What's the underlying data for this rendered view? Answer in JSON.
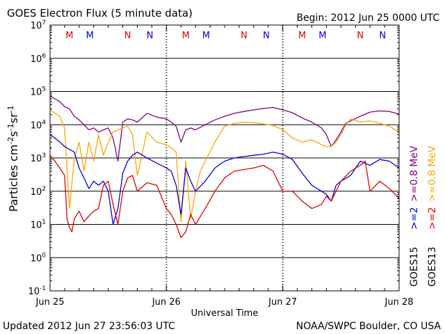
{
  "chart_data": {
    "type": "line",
    "title": "GOES Electron Flux (5 minute data)",
    "begin_label": "Begin: 2012 Jun 25 0000 UTC",
    "xlabel": "Universal Time",
    "ylabel_parts": [
      "Particles cm",
      "-2",
      "s",
      "-1",
      "sr",
      "-1"
    ],
    "y_scale": "log",
    "ylim": [
      0.1,
      10000000
    ],
    "xlim": [
      0,
      72
    ],
    "y_ticks": [
      {
        "base": "10",
        "exp": "7",
        "value": 10000000
      },
      {
        "base": "10",
        "exp": "6",
        "value": 1000000
      },
      {
        "base": "10",
        "exp": "5",
        "value": 100000
      },
      {
        "base": "10",
        "exp": "4",
        "value": 10000
      },
      {
        "base": "10",
        "exp": "3",
        "value": 1000
      },
      {
        "base": "10",
        "exp": "2",
        "value": 100
      },
      {
        "base": "10",
        "exp": "1",
        "value": 10
      },
      {
        "base": "10",
        "exp": "0",
        "value": 1
      },
      {
        "base": "10",
        "exp": "-1",
        "value": 0.1
      }
    ],
    "x_ticks": [
      {
        "label": "Jun 25",
        "hour": 0
      },
      {
        "label": "Jun 26",
        "hour": 24
      },
      {
        "label": "Jun 27",
        "hour": 48
      },
      {
        "label": "Jun 28",
        "hour": 72
      }
    ],
    "grid": "solid horizontal lines at each decade",
    "threshold_dashed_at": 1000,
    "markers": [
      {
        "label": "M",
        "hour": 4,
        "color": "#e00000"
      },
      {
        "label": "M",
        "hour": 8.2,
        "color": "#0000dd"
      },
      {
        "label": "N",
        "hour": 16,
        "color": "#e00000"
      },
      {
        "label": "N",
        "hour": 20.6,
        "color": "#0000dd"
      },
      {
        "label": "M",
        "hour": 28,
        "color": "#e00000"
      },
      {
        "label": "M",
        "hour": 32.2,
        "color": "#0000dd"
      },
      {
        "label": "N",
        "hour": 40,
        "color": "#e00000"
      },
      {
        "label": "N",
        "hour": 44.6,
        "color": "#0000dd"
      },
      {
        "label": "M",
        "hour": 52,
        "color": "#e00000"
      },
      {
        "label": "M",
        "hour": 56.2,
        "color": "#0000dd"
      },
      {
        "label": "N",
        "hour": 64,
        "color": "#e00000"
      },
      {
        "label": "N",
        "hour": 68.6,
        "color": "#0000dd"
      }
    ],
    "legend": {
      "position": "right, vertical",
      "groups": [
        {
          "satellite": "GOES15",
          "entries": [
            {
              "text": ">=2",
              "color": "#0000dd"
            },
            {
              "text": ">=0.8 MeV",
              "color": "#800080"
            }
          ]
        },
        {
          "satellite": "GOES13",
          "entries": [
            {
              "text": ">=2",
              "color": "#e00000"
            },
            {
              "text": ">=0.8 MeV",
              "color": "#ffa500"
            }
          ]
        }
      ]
    },
    "series": [
      {
        "color": "#800080",
        "x": [
          0,
          1,
          2,
          3,
          4,
          5,
          6,
          7,
          8,
          9,
          10,
          11,
          12,
          13,
          14,
          15,
          16,
          17,
          18,
          20,
          22,
          24,
          25,
          26,
          27,
          28,
          29,
          30,
          32,
          34,
          36,
          38,
          40,
          42,
          44,
          46,
          48,
          50,
          52,
          54,
          56,
          57,
          58,
          59,
          60,
          61,
          62,
          64,
          66,
          68,
          70,
          72
        ],
        "y": [
          75000,
          60000,
          50000,
          35000,
          30000,
          18000,
          14000,
          10000,
          7000,
          8000,
          6000,
          7000,
          8000,
          4000,
          800,
          12000,
          15000,
          14000,
          12000,
          22000,
          17000,
          15000,
          12000,
          9000,
          3000,
          7000,
          8000,
          7000,
          10000,
          14000,
          18000,
          22000,
          25000,
          28000,
          31000,
          33000,
          28000,
          23000,
          16000,
          12000,
          8000,
          5000,
          2200,
          3500,
          6000,
          11000,
          13000,
          18000,
          24000,
          26000,
          25000,
          21000
        ]
      },
      {
        "color": "#ffa500",
        "x": [
          0,
          1,
          2,
          3,
          4,
          5,
          6,
          7,
          8,
          9,
          10,
          11,
          12,
          13,
          14,
          15,
          16,
          17,
          18,
          20,
          22,
          24,
          25,
          26,
          27,
          28,
          29,
          30,
          31,
          32,
          34,
          36,
          38,
          40,
          42,
          44,
          46,
          48,
          50,
          52,
          54,
          56,
          57,
          58,
          59,
          60,
          61,
          62,
          64,
          66,
          68,
          70,
          72
        ],
        "y": [
          28000,
          22000,
          18000,
          8000,
          30,
          1000,
          3000,
          400,
          3000,
          800,
          5000,
          1200,
          3000,
          6000,
          7000,
          8000,
          9000,
          5000,
          300,
          6000,
          3000,
          2500,
          2000,
          1500,
          12,
          800,
          15,
          100,
          400,
          800,
          3000,
          9000,
          11000,
          12000,
          11500,
          10500,
          9500,
          7000,
          4000,
          3000,
          3500,
          2500,
          2200,
          2200,
          3000,
          5000,
          10000,
          15000,
          12000,
          13000,
          11000,
          9000,
          6000
        ]
      },
      {
        "color": "#0000dd",
        "x": [
          0,
          1,
          2,
          3,
          4,
          5,
          6,
          7,
          8,
          9,
          10,
          11,
          12,
          13,
          14,
          15,
          16,
          17,
          18,
          20,
          22,
          24,
          25,
          26,
          27,
          28,
          29,
          30,
          32,
          34,
          36,
          38,
          40,
          42,
          44,
          46,
          48,
          50,
          52,
          54,
          56,
          57,
          58,
          59,
          60,
          62,
          64,
          66,
          68,
          70,
          72
        ],
        "y": [
          5000,
          4000,
          3000,
          2200,
          1800,
          1500,
          500,
          250,
          120,
          200,
          150,
          200,
          100,
          10,
          30,
          350,
          800,
          1200,
          1500,
          1000,
          700,
          500,
          400,
          150,
          20,
          500,
          200,
          100,
          200,
          500,
          800,
          1000,
          1100,
          1200,
          1300,
          1500,
          1300,
          900,
          350,
          150,
          100,
          80,
          50,
          150,
          200,
          300,
          800,
          600,
          900,
          800,
          500
        ]
      },
      {
        "color": "#e00000",
        "x": [
          0,
          1,
          2,
          3,
          3.5,
          4,
          4.5,
          5,
          6,
          7,
          8,
          9,
          10,
          11,
          12,
          13,
          14,
          15,
          16,
          17,
          18,
          20,
          22,
          24,
          25,
          26,
          27,
          28,
          29,
          30,
          32,
          34,
          36,
          38,
          40,
          42,
          44,
          46,
          48,
          50,
          52,
          54,
          56,
          57,
          58,
          60,
          62,
          64,
          65,
          66,
          68,
          70,
          72
        ],
        "y": [
          1200,
          800,
          500,
          300,
          15,
          8,
          6,
          15,
          25,
          12,
          18,
          25,
          30,
          150,
          200,
          40,
          10,
          100,
          250,
          300,
          100,
          180,
          150,
          30,
          20,
          10,
          4,
          6,
          20,
          10,
          30,
          100,
          250,
          400,
          450,
          500,
          600,
          400,
          100,
          100,
          50,
          30,
          40,
          70,
          50,
          200,
          400,
          600,
          800,
          100,
          200,
          120,
          60
        ]
      }
    ]
  },
  "footer": {
    "updated": "Updated 2012 Jun 27 23:56:03 UTC",
    "source": "NOAA/SWPC Boulder, CO USA"
  }
}
